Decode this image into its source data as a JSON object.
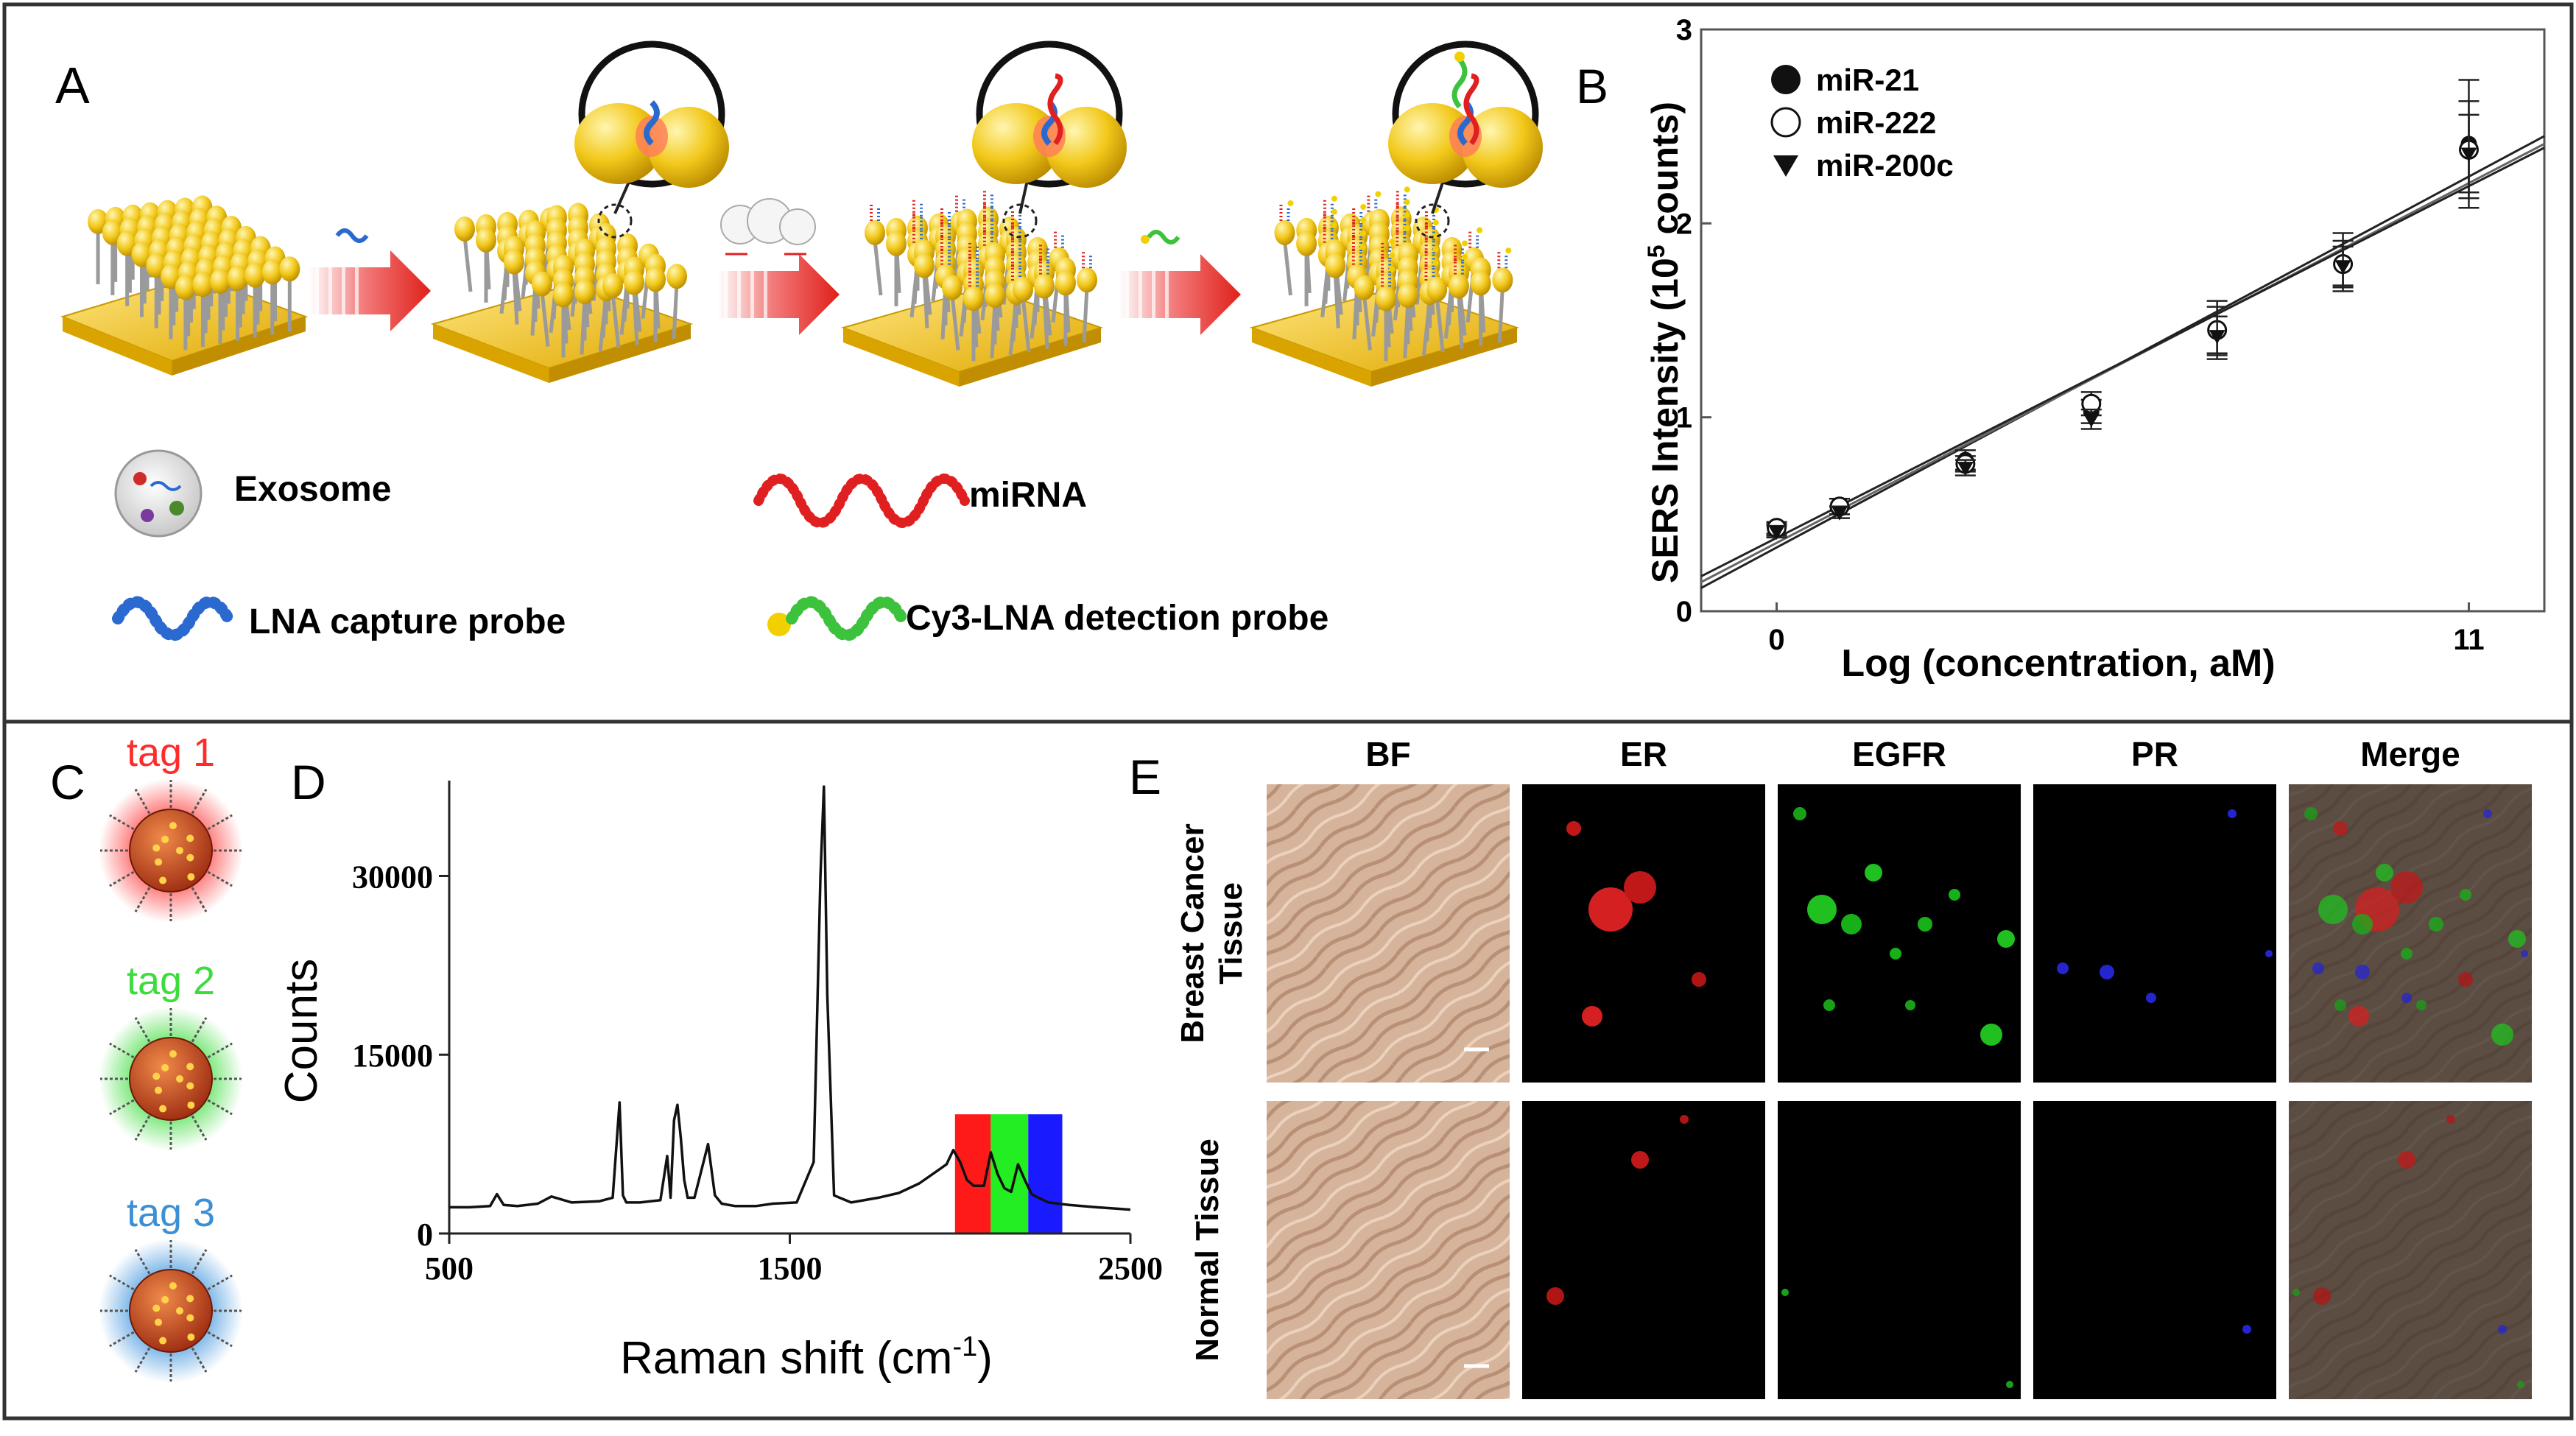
{
  "panels": {
    "a": {
      "letter": "A",
      "legend": {
        "exosome": "Exosome",
        "mirna": "miRNA",
        "capture": "LNA capture probe",
        "detection": "Cy3-LNA detection probe"
      }
    },
    "b": {
      "letter": "B",
      "legend": [
        "miR-21",
        "miR-222",
        "miR-200c"
      ]
    },
    "c": {
      "letter": "C",
      "tags": [
        {
          "label": "tag 1",
          "color": "#ff2a2a"
        },
        {
          "label": "tag 2",
          "color": "#3ddc3d"
        },
        {
          "label": "tag 3",
          "color": "#3b8fd6"
        }
      ]
    },
    "d": {
      "letter": "D"
    },
    "e": {
      "letter": "E",
      "columns": [
        "BF",
        "ER",
        "EGFR",
        "PR",
        "Merge"
      ],
      "rows": [
        "Breast Cancer Tissue",
        "Normal Tissue"
      ],
      "row_lines": [
        [
          "Breast Cancer",
          "Tissue"
        ],
        [
          "Normal Tissue"
        ]
      ]
    }
  },
  "chart_data": [
    {
      "panel": "B",
      "type": "scatter",
      "xlabel": "Log (concentration, aM)",
      "ylabel": "SERS Intensity (10⁵ counts)",
      "ylabel_main": "SERS Intensity (10",
      "ylabel_sup": "5",
      "ylabel_tail": " counts)",
      "x_ticks": [
        "0",
        "11"
      ],
      "y_ticks": [
        "0",
        "1",
        "2",
        "3"
      ],
      "xlim": [
        -1.2,
        12.2
      ],
      "ylim": [
        0,
        3
      ],
      "x": [
        0,
        1,
        3,
        5,
        7,
        9,
        11
      ],
      "series": [
        {
          "name": "miR-21",
          "marker": "filled-circle",
          "values": [
            0.42,
            0.54,
            0.78,
            1.03,
            1.45,
            1.8,
            2.41
          ],
          "err": [
            0.03,
            0.04,
            0.05,
            0.06,
            0.15,
            0.15,
            0.33
          ]
        },
        {
          "name": "miR-222",
          "marker": "open-circle",
          "values": [
            0.43,
            0.54,
            0.76,
            1.07,
            1.45,
            1.79,
            2.38
          ],
          "err": [
            0.03,
            0.04,
            0.04,
            0.06,
            0.12,
            0.12,
            0.25
          ]
        },
        {
          "name": "miR-200c",
          "marker": "down-triangle",
          "values": [
            0.41,
            0.51,
            0.74,
            0.99,
            1.42,
            1.78,
            2.36
          ],
          "err": [
            0.03,
            0.03,
            0.04,
            0.05,
            0.1,
            0.1,
            0.2
          ]
        }
      ],
      "fit_lines": [
        {
          "x": [
            -1.2,
            12.2
          ],
          "y": [
            0.12,
            2.45
          ]
        },
        {
          "x": [
            -1.2,
            12.2
          ],
          "y": [
            0.15,
            2.41
          ]
        },
        {
          "x": [
            -1.2,
            12.2
          ],
          "y": [
            0.18,
            2.39
          ]
        }
      ]
    },
    {
      "panel": "D",
      "type": "line",
      "xlabel": "Raman shift (cm⁻¹)",
      "xlabel_main": "Raman shift (cm",
      "xlabel_sup": "-1",
      "xlabel_tail": ")",
      "ylabel": "Counts",
      "x_ticks": [
        "500",
        "1500",
        "2500"
      ],
      "y_ticks": [
        "0",
        "15000",
        "30000"
      ],
      "xlim": [
        500,
        2500
      ],
      "ylim": [
        0,
        38000
      ],
      "series": [
        {
          "name": "",
          "x": [
            500,
            560,
            620,
            640,
            660,
            700,
            760,
            800,
            860,
            940,
            980,
            1000,
            1010,
            1020,
            1060,
            1120,
            1140,
            1150,
            1160,
            1170,
            1180,
            1190,
            1200,
            1220,
            1260,
            1280,
            1300,
            1340,
            1400,
            1450,
            1520,
            1570,
            1590,
            1600,
            1610,
            1630,
            1680,
            1760,
            1820,
            1880,
            1920,
            1960,
            1980,
            2000,
            2020,
            2040,
            2070,
            2090,
            2110,
            2130,
            2150,
            2170,
            2190,
            2210,
            2230,
            2260,
            2320,
            2400,
            2500
          ],
          "y": [
            2200,
            2200,
            2300,
            3300,
            2400,
            2300,
            2500,
            3100,
            2600,
            2700,
            3000,
            11000,
            3200,
            2600,
            2600,
            2800,
            6500,
            3000,
            9500,
            10800,
            8000,
            4500,
            3000,
            3000,
            7500,
            3200,
            2500,
            2300,
            2300,
            2500,
            2600,
            6000,
            30000,
            37500,
            20000,
            3200,
            2600,
            3000,
            3400,
            4200,
            5000,
            5800,
            7000,
            6000,
            4500,
            4000,
            4000,
            6800,
            5000,
            3800,
            3500,
            5800,
            4500,
            3300,
            3000,
            2600,
            2400,
            2200,
            2000
          ]
        }
      ],
      "highlight_bands": [
        {
          "x": [
            1985,
            2090
          ],
          "color": "#ff1a1a"
        },
        {
          "x": [
            2090,
            2200
          ],
          "color": "#22ee22"
        },
        {
          "x": [
            2200,
            2300
          ],
          "color": "#1a1aff"
        }
      ]
    }
  ]
}
